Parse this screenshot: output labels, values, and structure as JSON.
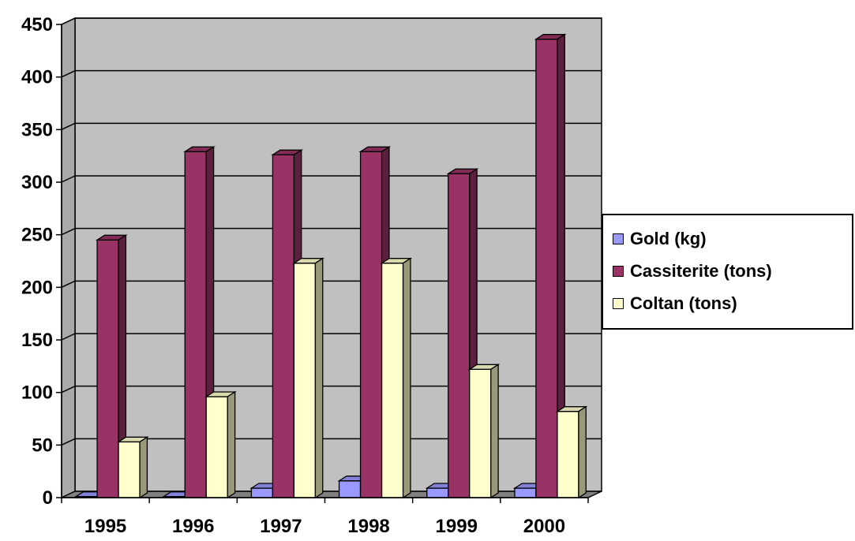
{
  "chart_data": {
    "type": "bar",
    "categories": [
      "1995",
      "1996",
      "1997",
      "1998",
      "1999",
      "2000"
    ],
    "series": [
      {
        "name": "Gold (kg)",
        "color": "#9999ff",
        "values": [
          1,
          1,
          9,
          16,
          9,
          9
        ]
      },
      {
        "name": "Cassiterite (tons)",
        "color": "#993366",
        "values": [
          245,
          329,
          326,
          329,
          308,
          436
        ]
      },
      {
        "name": "Coltan (tons)",
        "color": "#ffffcc",
        "values": [
          53,
          96,
          223,
          223,
          122,
          82
        ]
      }
    ],
    "yticks": [
      "0",
      "50",
      "100",
      "150",
      "200",
      "250",
      "300",
      "350",
      "400",
      "450"
    ],
    "ylim": [
      0,
      450
    ],
    "grid": true,
    "legend_position": "right",
    "plot_background": "#c0c0c0",
    "floor_color": "#808080"
  }
}
